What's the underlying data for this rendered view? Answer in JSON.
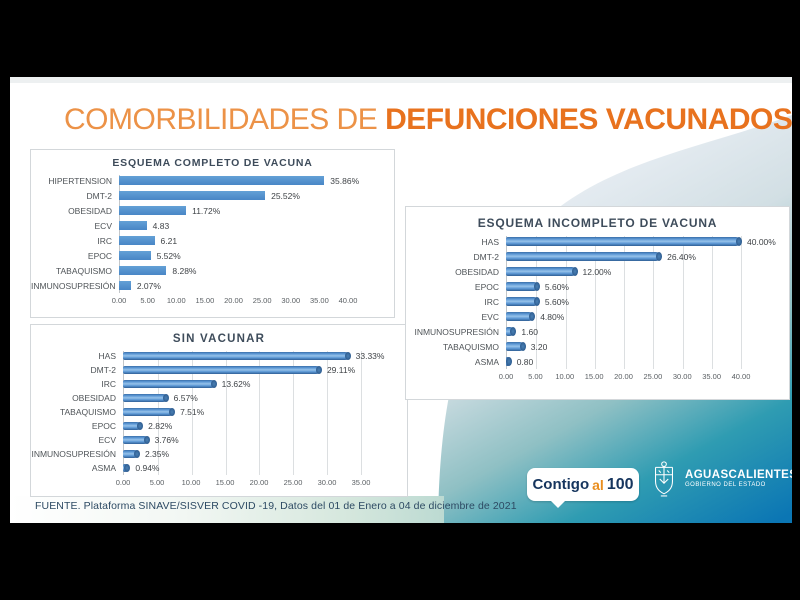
{
  "slide": {
    "title_light": "COMORBILIDADES DE ",
    "title_bold": "DEFUNCIONES VACUNADOS",
    "source": "FUENTE. Plataforma SINAVE/SISVER COVID -19, Datos del 01 de Enero a 04 de diciembre de 2021"
  },
  "colors": {
    "title_light_orange": "#ec9247",
    "title_bold_orange": "#e8721e",
    "bar_blue": "#5b97d4",
    "swoosh_light": "#e9eef4",
    "swoosh_teal": "#55a8ad",
    "swoosh_blue": "#0b76b4",
    "source_text": "#2d4a63",
    "contigo_navy": "#16355e",
    "contigo_orange": "#e98e1e"
  },
  "chart_data": [
    {
      "type": "bar",
      "orientation": "horizontal",
      "title": "ESQUEMA COMPLETO DE VACUNA",
      "categories": [
        "HIPERTENSION",
        "DMT-2",
        "OBESIDAD",
        "ECV",
        "IRC",
        "EPOC",
        "TABAQUISMO",
        "INMUNOSUPRESIÓN"
      ],
      "values": [
        35.86,
        25.52,
        11.72,
        4.83,
        6.21,
        5.52,
        8.28,
        2.07
      ],
      "value_labels": [
        "35.86%",
        "25.52%",
        "11.72%",
        "4.83",
        "6.21",
        "5.52%",
        "8.28%",
        "2.07%"
      ],
      "xlim": [
        0,
        40
      ],
      "xticks": [
        "0.00",
        "5.00",
        "10.00",
        "15.00",
        "20.00",
        "25.00",
        "30.00",
        "35.00",
        "40.00"
      ],
      "grid": false,
      "style": "flat",
      "legend": "none"
    },
    {
      "type": "bar",
      "orientation": "horizontal",
      "title": "SIN VACUNAR",
      "categories": [
        "HAS",
        "DMT-2",
        "IRC",
        "OBESIDAD",
        "TABAQUISMO",
        "EPOC",
        "ECV",
        "INMUNOSUPRESIÓN",
        "ASMA"
      ],
      "values": [
        33.33,
        29.11,
        13.62,
        6.57,
        7.51,
        2.82,
        3.76,
        2.35,
        0.94
      ],
      "value_labels": [
        "33.33%",
        "29.11%",
        "13.62%",
        "6.57%",
        "7.51%",
        "2.82%",
        "3.76%",
        "2.35%",
        "0.94%"
      ],
      "xlim": [
        0,
        35
      ],
      "xticks": [
        "0.00",
        "5.00",
        "10.00",
        "15.00",
        "20.00",
        "25.00",
        "30.00",
        "35.00"
      ],
      "grid": true,
      "style": "cyl",
      "legend": "none"
    },
    {
      "type": "bar",
      "orientation": "horizontal",
      "title": "ESQUEMA INCOMPLETO DE VACUNA",
      "categories": [
        "HAS",
        "DMT-2",
        "OBESIDAD",
        "EPOC",
        "IRC",
        "EVC",
        "INMUNOSUPRESIÓN",
        "TABAQUISMO",
        "ASMA"
      ],
      "values": [
        40.0,
        26.4,
        12.0,
        5.6,
        5.6,
        4.8,
        1.6,
        3.2,
        0.8
      ],
      "value_labels": [
        "40.00%",
        "26.40%",
        "12.00%",
        "5.60%",
        "5.60%",
        "4.80%",
        "1.60",
        "3.20",
        "0.80"
      ],
      "xlim": [
        0,
        40
      ],
      "xticks": [
        "0.00",
        "5.00",
        "10.00",
        "15.00",
        "20.00",
        "25.00",
        "30.00",
        "35.00",
        "40.00"
      ],
      "grid": true,
      "style": "cyl",
      "legend": "none"
    }
  ],
  "footer": {
    "contigo": {
      "word1": "Contigo",
      "word2": "al",
      "word3": "100"
    },
    "gobierno": {
      "line1": "AGUASCALIENTES",
      "line2": "GOBIERNO DEL ESTADO"
    }
  }
}
